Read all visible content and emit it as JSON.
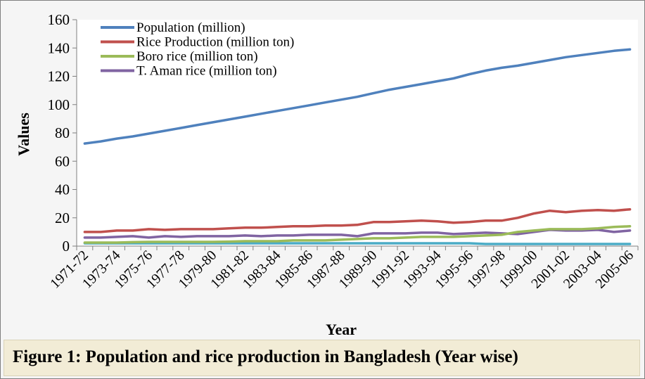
{
  "figure_caption": "Figure 1: Population and rice production in Bangladesh (Year wise)",
  "chart_data": {
    "type": "line",
    "title": "",
    "xlabel": "Year",
    "ylabel": "Values",
    "ylim": [
      0,
      160
    ],
    "yticks": [
      0,
      20,
      40,
      60,
      80,
      100,
      120,
      140,
      160
    ],
    "grid": false,
    "legend_position": "top-left",
    "x": [
      "1971-72",
      "1972-73",
      "1973-74",
      "1974-75",
      "1975-76",
      "1976-77",
      "1977-78",
      "1978-79",
      "1979-80",
      "1980-81",
      "1981-82",
      "1982-83",
      "1983-84",
      "1984-85",
      "1985-86",
      "1986-87",
      "1987-88",
      "1988-89",
      "1989-90",
      "1990-91",
      "1991-92",
      "1992-93",
      "1993-94",
      "1994-95",
      "1995-96",
      "1996-97",
      "1997-98",
      "1998-99",
      "1999-00",
      "2000-01",
      "2001-02",
      "2002-03",
      "2003-04",
      "2004-05",
      "2005-06"
    ],
    "xticklabels": [
      "1971-72",
      "1973-74",
      "1975-76",
      "1977-78",
      "1979-80",
      "1981-82",
      "1983-84",
      "1985-86",
      "1987-88",
      "1989-90",
      "1991-92",
      "1993-94",
      "1995-96",
      "1997-98",
      "1999-00",
      "2001-02",
      "2003-04",
      "2005-06"
    ],
    "series": [
      {
        "name": "Population (million)",
        "color": "#4f81bd",
        "values": [
          72.5,
          74,
          76,
          77.5,
          79.5,
          81.5,
          83.5,
          85.5,
          87.5,
          89.5,
          91.5,
          93.5,
          95.5,
          97.5,
          99.5,
          101.5,
          103.5,
          105.5,
          108,
          110.5,
          112.5,
          114.5,
          116.5,
          118.5,
          121.5,
          124,
          126,
          127.5,
          129.5,
          131.5,
          133.5,
          135,
          136.5,
          138,
          139
        ]
      },
      {
        "name": "Rice Production (million ton)",
        "color": "#c0504d",
        "values": [
          10,
          10,
          11,
          11,
          12,
          11.5,
          12,
          12,
          12,
          12.5,
          13,
          13,
          13.5,
          14,
          14,
          14.5,
          14.5,
          15,
          17,
          17,
          17.5,
          18,
          17.5,
          16.5,
          17,
          18,
          18,
          20,
          23,
          25,
          24,
          25,
          25.5,
          25,
          26
        ]
      },
      {
        "name": "Boro rice (million ton)",
        "color": "#9bbb59",
        "values": [
          2.5,
          2.5,
          2.5,
          2.8,
          3,
          3,
          3,
          3,
          3,
          3.2,
          3.5,
          3.5,
          3.5,
          4,
          4,
          4,
          4.5,
          5,
          5.5,
          5.5,
          6,
          6.5,
          6.5,
          6.5,
          7,
          7.5,
          8,
          10,
          11,
          12,
          12,
          12,
          12.5,
          13.5,
          14
        ]
      },
      {
        "name": "T. Aman rice (million ton)",
        "color": "#8064a2",
        "values": [
          6,
          6,
          6.5,
          7,
          6,
          7,
          6.5,
          7,
          7,
          7,
          7.5,
          7,
          7.5,
          7.5,
          8,
          8,
          8,
          7,
          9,
          9,
          9,
          9.5,
          9.5,
          8.5,
          9,
          9.5,
          9,
          8.5,
          10,
          11.5,
          11,
          11,
          11.5,
          10,
          11
        ]
      },
      {
        "color": "#4bacc6",
        "values": [
          2,
          2,
          2,
          2,
          2,
          2,
          2,
          2,
          2,
          2,
          2,
          2,
          2,
          2,
          2,
          2,
          2,
          2,
          2,
          2,
          2,
          2,
          2,
          2,
          2,
          1.5,
          1.5,
          1.5,
          1.5,
          1.5,
          1.5,
          1.5,
          1.5,
          1.5,
          1.5
        ]
      }
    ]
  }
}
